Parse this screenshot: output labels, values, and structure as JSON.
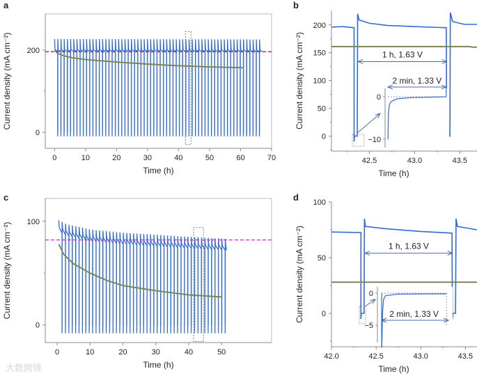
{
  "watermark": "大数跨境",
  "colors": {
    "blue": "#2f6bd3",
    "green": "#7b8656",
    "ref_a": "#a3205a",
    "ref_c": "#c23ac2",
    "axis": "#8a8a8a",
    "annot": "#4a6aa8"
  },
  "chart_data": [
    {
      "panel": "a",
      "type": "line",
      "xlabel": "Time (h)",
      "ylabel": "Current density (mA cm⁻²)",
      "xlim": [
        -3,
        70
      ],
      "ylim": [
        -39,
        288
      ],
      "xticks": [
        0,
        10,
        20,
        30,
        40,
        50,
        60,
        70
      ],
      "xtick_labels": [
        "0",
        "10",
        "20",
        "30",
        "40",
        "50",
        "60",
        "70"
      ],
      "yticks": [
        0,
        200
      ],
      "ytick_labels": [
        "0",
        "200"
      ],
      "yminor": [
        100
      ],
      "reference_line": {
        "y": 196,
        "style": "dashed",
        "color_key": "ref_a"
      },
      "cycling_series": {
        "name": "cycled",
        "color_key": "blue",
        "start": 0,
        "end": 67,
        "cycle_period_h": 1.033,
        "rest_h": 0.033,
        "baseline": [
          [
            0,
            197
          ],
          [
            67,
            196
          ]
        ],
        "peak_offset": 30,
        "trough": -10
      },
      "series": [
        {
          "name": "constant",
          "color_key": "green",
          "points": [
            [
              0,
              200
            ],
            [
              1,
              192
            ],
            [
              3,
              186
            ],
            [
              6,
              181
            ],
            [
              10,
              177
            ],
            [
              20,
              171
            ],
            [
              30,
              166
            ],
            [
              40,
              162
            ],
            [
              50,
              159
            ],
            [
              61,
              157
            ]
          ]
        }
      ],
      "highlight_box": {
        "x": [
          42.2,
          44
        ],
        "y": [
          -30,
          245
        ]
      }
    },
    {
      "panel": "b",
      "type": "line",
      "xlabel": "Time (h)",
      "ylabel": "Current density (mA cm⁻²)",
      "xlim": [
        42.08,
        43.69
      ],
      "ylim": [
        -27,
        226
      ],
      "xticks": [
        42.5,
        43.0,
        43.5
      ],
      "xtick_labels": [
        "42.5",
        "43.0",
        "43.5"
      ],
      "xminor": [
        42.25,
        42.75,
        43.25
      ],
      "yticks": [
        0,
        50,
        100,
        150,
        200
      ],
      "ytick_labels": [
        "0",
        "50",
        "100",
        "150",
        "200"
      ],
      "yminor": [
        25,
        75,
        125,
        175,
        -25
      ],
      "series": [
        {
          "name": "cycled",
          "color_key": "blue",
          "points": [
            [
              42.08,
              196
            ],
            [
              42.2,
              197
            ],
            [
              42.33,
              195
            ],
            [
              42.33,
              -10
            ],
            [
              42.335,
              0
            ],
            [
              42.365,
              0
            ],
            [
              42.37,
              220
            ],
            [
              42.385,
              209
            ],
            [
              42.5,
              203
            ],
            [
              42.7,
              199
            ],
            [
              43.0,
              197
            ],
            [
              43.35,
              195
            ],
            [
              43.355,
              -10
            ],
            [
              43.36,
              0
            ],
            [
              43.39,
              0
            ],
            [
              43.395,
              222
            ],
            [
              43.42,
              206
            ],
            [
              43.55,
              201
            ],
            [
              43.69,
              201
            ]
          ]
        },
        {
          "name": "constant",
          "color_key": "green",
          "points": [
            [
              42.08,
              161
            ],
            [
              43.6,
              161
            ],
            [
              43.65,
              160
            ],
            [
              43.69,
              160
            ]
          ]
        }
      ],
      "annotation": {
        "label": "1 h, 1.63 V",
        "x": [
          42.375,
          43.355
        ],
        "y": 134
      },
      "inset": {
        "label": "2 min, 1.33 V",
        "xlim": [
          -0.095,
          2.1
        ],
        "ylim": [
          -12,
          1.97
        ],
        "ytick_labels": [
          "0",
          "−10"
        ],
        "yticks": [
          0,
          -10
        ],
        "points": [
          [
            0,
            -10
          ],
          [
            0.005,
            -10
          ],
          [
            0.02,
            -4
          ],
          [
            0.05,
            -2
          ],
          [
            0.1,
            -1.2
          ],
          [
            0.3,
            -0.5
          ],
          [
            0.8,
            -0.2
          ],
          [
            2,
            0
          ],
          [
            2,
            2
          ]
        ]
      }
    },
    {
      "panel": "c",
      "type": "line",
      "xlabel": "Time (h)",
      "ylabel": "Current density (mA cm⁻²)",
      "xlim": [
        -3.6,
        65.2
      ],
      "ylim": [
        -17,
        122
      ],
      "xticks": [
        0,
        10,
        20,
        30,
        40,
        50
      ],
      "xtick_labels": [
        "0",
        "10",
        "20",
        "30",
        "40",
        "50"
      ],
      "yticks": [
        0,
        100
      ],
      "ytick_labels": [
        "0",
        "100"
      ],
      "yminor": [
        50
      ],
      "reference_line": {
        "y": 82,
        "style": "dashed",
        "color_key": "ref_c"
      },
      "cycling_series": {
        "name": "cycled",
        "color_key": "blue",
        "start": 0.5,
        "end": 51.5,
        "cycle_period_h": 1.033,
        "rest_h": 0.033,
        "baseline": [
          [
            0.5,
            90
          ],
          [
            3,
            86
          ],
          [
            6,
            84
          ],
          [
            10,
            81
          ],
          [
            20,
            78
          ],
          [
            30,
            76
          ],
          [
            40,
            74
          ],
          [
            51.5,
            72
          ]
        ],
        "peak_offset": 11,
        "trough": -8
      },
      "series": [
        {
          "name": "constant",
          "color_key": "green",
          "points": [
            [
              0.5,
              78
            ],
            [
              2,
              68
            ],
            [
              5,
              59
            ],
            [
              10,
              50
            ],
            [
              15,
              43
            ],
            [
              20,
              38
            ],
            [
              30,
              33
            ],
            [
              40,
              29
            ],
            [
              50,
              27
            ]
          ]
        }
      ],
      "highlight_box": {
        "x": [
          41.5,
          44.5
        ],
        "y": [
          -16,
          94
        ]
      }
    },
    {
      "panel": "d",
      "type": "line",
      "xlabel": "Time (h)",
      "ylabel": "Current density (mA cm⁻²)",
      "xlim": [
        42.0,
        43.63
      ],
      "ylim": [
        -30,
        100
      ],
      "xticks": [
        42.0,
        42.5,
        43.0,
        43.5
      ],
      "xtick_labels": [
        "42.0",
        "42.5",
        "43.0",
        "43.5"
      ],
      "xminor": [
        42.25,
        42.75,
        43.25
      ],
      "yticks": [
        0,
        50,
        100
      ],
      "ytick_labels": [
        "0",
        "50",
        "100"
      ],
      "yminor": [
        25,
        75,
        -25
      ],
      "series": [
        {
          "name": "cycled",
          "color_key": "blue",
          "points": [
            [
              42.0,
              73
            ],
            [
              42.33,
              72.5
            ],
            [
              42.33,
              -5
            ],
            [
              42.335,
              0
            ],
            [
              42.365,
              0
            ],
            [
              42.37,
              85
            ],
            [
              42.38,
              78
            ],
            [
              42.6,
              76
            ],
            [
              43.0,
              73.5
            ],
            [
              43.35,
              72
            ],
            [
              43.355,
              -5
            ],
            [
              43.36,
              0
            ],
            [
              43.39,
              0
            ],
            [
              43.395,
              85
            ],
            [
              43.41,
              78
            ],
            [
              43.63,
              75
            ]
          ]
        },
        {
          "name": "constant",
          "color_key": "green",
          "points": [
            [
              42.0,
              28
            ],
            [
              43.63,
              28
            ]
          ]
        }
      ],
      "annotation": {
        "label": "1 h, 1.63 V",
        "x": [
          42.375,
          43.355
        ],
        "y": 54
      },
      "inset": {
        "label": "2 min, 1.33 V",
        "xlim": [
          -0.13,
          2.19
        ],
        "ylim": [
          -7.7,
          0.98
        ],
        "ytick_labels": [
          "0",
          "−5"
        ],
        "yticks": [
          0,
          -5
        ],
        "points": [
          [
            0,
            0
          ],
          [
            0,
            -8.5
          ],
          [
            0.01,
            -7.5
          ],
          [
            0.03,
            -3
          ],
          [
            0.06,
            -1
          ],
          [
            0.12,
            -0.4
          ],
          [
            0.5,
            -0.15
          ],
          [
            2,
            -0.1
          ]
        ]
      }
    }
  ]
}
